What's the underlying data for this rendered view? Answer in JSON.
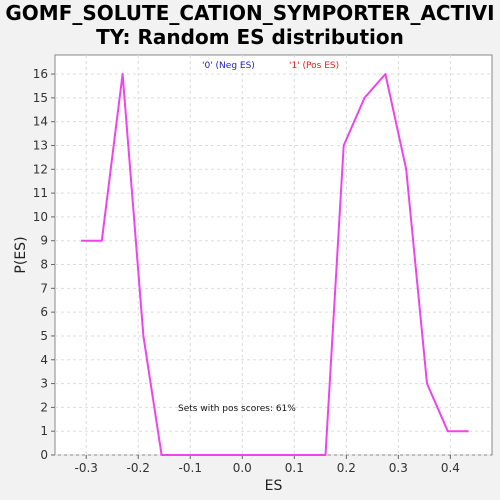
{
  "chart_data": {
    "type": "line",
    "title_lines": [
      "GOMF_SOLUTE_CATION_SYMPORTER_ACTIVI",
      "TY: Random ES distribution"
    ],
    "xlabel": "ES",
    "ylabel": "P(ES)",
    "xlim": [
      -0.36,
      0.48
    ],
    "ylim": [
      0,
      16.8
    ],
    "x_ticks": [
      -0.3,
      -0.2,
      -0.1,
      0.0,
      0.1,
      0.2,
      0.3,
      0.4
    ],
    "x_tick_labels": [
      "-0.3",
      "-0.2",
      "-0.1",
      "0.0",
      "0.1",
      "0.2",
      "0.3",
      "0.4"
    ],
    "y_ticks": [
      0,
      1,
      2,
      3,
      4,
      5,
      6,
      7,
      8,
      9,
      10,
      11,
      12,
      13,
      14,
      15,
      16
    ],
    "y_tick_labels": [
      "0",
      "1",
      "2",
      "3",
      "4",
      "5",
      "6",
      "7",
      "8",
      "9",
      "10",
      "11",
      "12",
      "13",
      "14",
      "15",
      "16"
    ],
    "grid": true,
    "legend_position": "top-center",
    "legend": [
      {
        "label": "'0' (Neg ES)",
        "color": "#2222bb"
      },
      {
        "label": "'1' (Pos ES)",
        "color": "#dd2222"
      }
    ],
    "annotation": "Sets with pos scores: 61%",
    "series": [
      {
        "color": "#ee44ee",
        "x": [
          -0.31,
          -0.27,
          -0.23,
          -0.19,
          -0.155,
          -0.155,
          0.16,
          0.195,
          0.235,
          0.275,
          0.315,
          0.355,
          0.395,
          0.435
        ],
        "y": [
          9,
          9,
          16,
          5,
          0,
          0,
          0,
          13,
          15,
          16,
          12,
          3,
          1,
          1
        ]
      }
    ]
  }
}
